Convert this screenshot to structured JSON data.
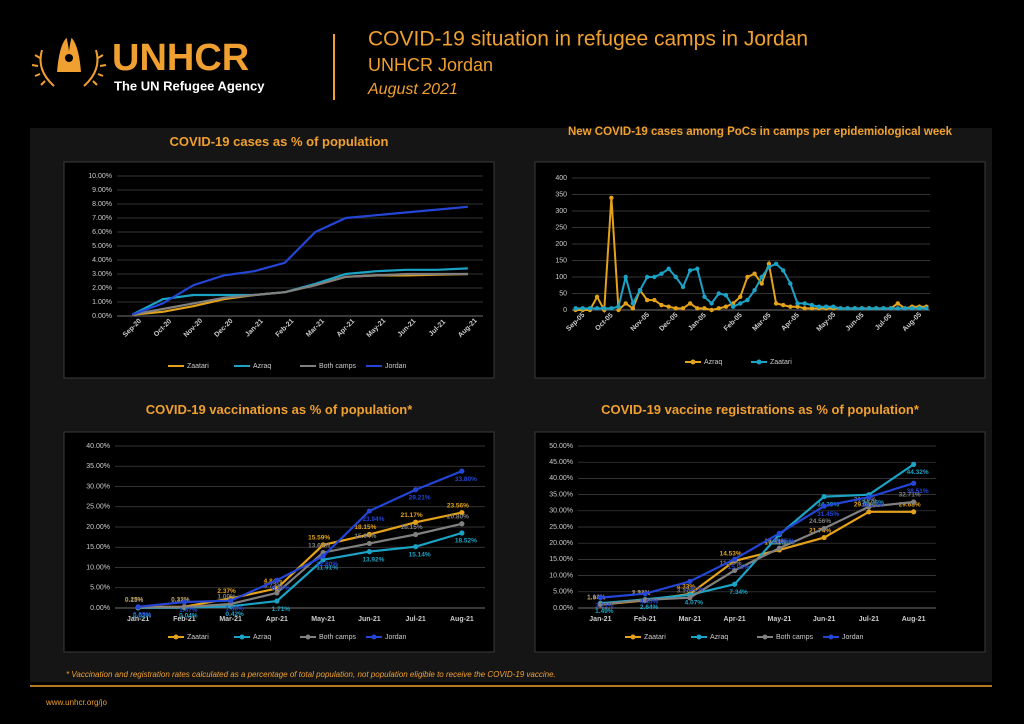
{
  "header": {
    "logo_text": "UNHCR",
    "tagline": "The UN Refugee Agency",
    "title": "COVID-19 situation in refugee camps in Jordan",
    "subtitle": "UNHCR Jordan",
    "date": "August 2021"
  },
  "footnote": "* Vaccination and registration rates calculated as a percentage of total population, not population eligible to receive the COVID-19 vaccine.",
  "url": "www.unhcr.org/jo",
  "chart_data": [
    {
      "type": "line",
      "title": "COVID-19 cases as % of population",
      "grid": true,
      "markers": false,
      "legend": "bottom",
      "categories": [
        "Sep-20",
        "Oct-20",
        "Nov-20",
        "Dec-20",
        "Jan-21",
        "Feb-21",
        "Mar-21",
        "Apr-21",
        "May-21",
        "Jun-21",
        "Jul-21",
        "Aug-21"
      ],
      "ylim": [
        0,
        10
      ],
      "yticks": [
        {
          "value": 0,
          "label": "0.00%"
        },
        {
          "value": 1,
          "label": "1.00%"
        },
        {
          "value": 2,
          "label": "2.00%"
        },
        {
          "value": 3,
          "label": "3.00%"
        },
        {
          "value": 4,
          "label": "4.00%"
        },
        {
          "value": 5,
          "label": "5.00%"
        },
        {
          "value": 6,
          "label": "6.00%"
        },
        {
          "value": 7,
          "label": "7.00%"
        },
        {
          "value": 8,
          "label": "8.00%"
        },
        {
          "value": 9,
          "label": "9.00%"
        },
        {
          "value": 10,
          "label": "10.00%"
        }
      ],
      "series": [
        {
          "name": "Zaatari",
          "color": "#e3a21a",
          "values": [
            0.1,
            0.3,
            0.7,
            1.2,
            1.5,
            1.7,
            2.2,
            2.8,
            2.9,
            2.9,
            2.95,
            3.0
          ]
        },
        {
          "name": "Azraq",
          "color": "#1ba3c6",
          "values": [
            0.1,
            1.2,
            1.5,
            1.5,
            1.5,
            1.7,
            2.3,
            3.0,
            3.2,
            3.3,
            3.3,
            3.4
          ]
        },
        {
          "name": "Both camps",
          "color": "#808080",
          "values": [
            0.1,
            0.5,
            0.9,
            1.3,
            1.5,
            1.7,
            2.2,
            2.8,
            2.9,
            3.0,
            3.0,
            3.0
          ]
        },
        {
          "name": "Jordan",
          "color": "#2446d6",
          "values": [
            0.1,
            0.9,
            2.2,
            2.9,
            3.2,
            3.8,
            6.0,
            7.0,
            7.2,
            7.4,
            7.6,
            7.8
          ]
        }
      ]
    },
    {
      "type": "line",
      "title": "New COVID-19 cases among PoCs in camps per epidemiological week",
      "grid": true,
      "markers": true,
      "legend": "bottom",
      "categories": [
        "Sep-05",
        null,
        null,
        null,
        "Oct-05",
        null,
        null,
        null,
        null,
        "Nov-05",
        null,
        null,
        null,
        "Dec-05",
        null,
        null,
        null,
        "Jan-05",
        null,
        null,
        null,
        null,
        "Feb-05",
        null,
        null,
        null,
        "Mar-05",
        null,
        null,
        null,
        "Apr-05",
        null,
        null,
        null,
        null,
        "May-05",
        null,
        null,
        null,
        "Jun-05",
        null,
        null,
        null,
        "Jul-05",
        null,
        null,
        null,
        "Aug-05",
        null,
        null
      ],
      "ylim": [
        0,
        400
      ],
      "yticks": [
        0,
        50,
        100,
        150,
        200,
        250,
        300,
        350,
        400
      ],
      "series": [
        {
          "name": "Azraq",
          "color": "#e3a21a",
          "values": [
            0,
            0,
            0,
            40,
            0,
            340,
            0,
            20,
            5,
            60,
            30,
            30,
            15,
            10,
            5,
            5,
            20,
            5,
            5,
            0,
            5,
            10,
            20,
            40,
            100,
            110,
            80,
            140,
            20,
            15,
            10,
            10,
            5,
            5,
            5,
            5,
            5,
            5,
            5,
            5,
            5,
            5,
            5,
            5,
            5,
            20,
            5,
            10,
            10,
            10
          ]
        },
        {
          "name": "Zaatari",
          "color": "#1ba3c6",
          "values": [
            5,
            5,
            5,
            5,
            5,
            5,
            10,
            100,
            20,
            60,
            100,
            100,
            110,
            125,
            100,
            70,
            120,
            125,
            40,
            20,
            50,
            45,
            10,
            20,
            30,
            60,
            100,
            130,
            140,
            120,
            80,
            20,
            20,
            15,
            10,
            10,
            10,
            5,
            5,
            5,
            5,
            5,
            5,
            5,
            5,
            5,
            5,
            5,
            5,
            5
          ]
        }
      ]
    },
    {
      "type": "line",
      "title": "COVID-19 vaccinations as % of population*",
      "grid": true,
      "markers": true,
      "legend": "bottom",
      "categories": [
        "Jan-21",
        "Feb-21",
        "Mar-21",
        "Apr-21",
        "May-21",
        "Jun-21",
        "Jul-21",
        "Aug-21"
      ],
      "ylim": [
        0,
        40
      ],
      "yticks": [
        {
          "value": 0,
          "label": "0.00%"
        },
        {
          "value": 5,
          "label": "5.00%"
        },
        {
          "value": 10,
          "label": "10.00%"
        },
        {
          "value": 15,
          "label": "15.00%"
        },
        {
          "value": 20,
          "label": "20.00%"
        },
        {
          "value": 25,
          "label": "25.00%"
        },
        {
          "value": 30,
          "label": "30.00%"
        },
        {
          "value": 35,
          "label": "35.00%"
        },
        {
          "value": 40,
          "label": "40.00%"
        }
      ],
      "series": [
        {
          "name": "Zaatari",
          "color": "#e3a21a",
          "values": [
            0.25,
            0.32,
            2.37,
            4.84,
            15.59,
            18.15,
            21.17,
            23.56
          ],
          "value_labels": [
            "0.25%",
            "0.32%",
            "2.37%",
            "4.84%",
            "15.59%",
            "18.15%",
            "21.17%",
            "23.56%"
          ]
        },
        {
          "name": "Azraq",
          "color": "#1ba3c6",
          "values": [
            0.02,
            0.04,
            0.42,
            1.71,
            11.91,
            13.92,
            15.14,
            18.52
          ],
          "value_labels": [
            "0.02%",
            "0.04%",
            "0.42%",
            "1.71%",
            "11.91%",
            "13.92%",
            "15.14%",
            "18.52%"
          ]
        },
        {
          "name": "Both camps",
          "color": "#808080",
          "values": [
            0.13,
            0.22,
            1.0,
            3.73,
            13.68,
            15.94,
            18.15,
            20.8
          ],
          "value_labels": [
            "0.13%",
            "0.22%",
            "1.00%",
            "3.73%",
            "13.68%",
            "15.94%",
            "18.15%",
            "20.80%"
          ]
        },
        {
          "name": "Jordan",
          "color": "#2446d6",
          "values": [
            0.29,
            1.47,
            1.8,
            6.87,
            12.8,
            23.94,
            29.21,
            33.8
          ],
          "value_labels": [
            "0.29%",
            "1.47%",
            "1.80%",
            "6.87%",
            "12.80%",
            "23.94%",
            "29.21%",
            "33.80%"
          ]
        }
      ]
    },
    {
      "type": "line",
      "title": "COVID-19 vaccine registrations as % of population*",
      "grid": true,
      "markers": true,
      "legend": "bottom",
      "categories": [
        "Jan-21",
        "Feb-21",
        "Mar-21",
        "Apr-21",
        "May-21",
        "Jun-21",
        "Jul-21",
        "Aug-21"
      ],
      "ylim": [
        0,
        50
      ],
      "yticks": [
        {
          "value": 0,
          "label": "0.00%"
        },
        {
          "value": 5,
          "label": "5.00%"
        },
        {
          "value": 10,
          "label": "10.00%"
        },
        {
          "value": 15,
          "label": "15.00%"
        },
        {
          "value": 20,
          "label": "20.00%"
        },
        {
          "value": 25,
          "label": "25.00%"
        },
        {
          "value": 30,
          "label": "30.00%"
        },
        {
          "value": 35,
          "label": "35.00%"
        },
        {
          "value": 40,
          "label": "40.00%"
        },
        {
          "value": 45,
          "label": "45.00%"
        },
        {
          "value": 50,
          "label": "50.00%"
        }
      ],
      "series": [
        {
          "name": "Zaatari",
          "color": "#e3a21a",
          "values": [
            1.04,
            2.34,
            4.33,
            14.53,
            17.94,
            21.74,
            29.68,
            29.68
          ],
          "value_labels": [
            "1.04%",
            "2.34%",
            "4.33%",
            "14.53%",
            "17.94%",
            "21.74%",
            "29.68%",
            "29.68%"
          ]
        },
        {
          "name": "Azraq",
          "color": "#1ba3c6",
          "values": [
            1.49,
            2.64,
            4.07,
            7.34,
            22.65,
            34.39,
            34.96,
            44.32
          ],
          "value_labels": [
            "1.49%",
            "2.64%",
            "4.07%",
            "7.34%",
            "22.65%",
            "34.39%",
            "34.96%",
            "44.32%"
          ]
        },
        {
          "name": "Both camps",
          "color": "#808080",
          "values": [
            1.13,
            2.51,
            3.17,
            11.59,
            18.49,
            24.56,
            31.26,
            32.71
          ],
          "value_labels": [
            "1.13%",
            "2.51%",
            "3.17%",
            "11.59%",
            "18.49%",
            "24.56%",
            "31.26%",
            "32.71%"
          ]
        },
        {
          "name": "Jordan",
          "color": "#2446d6",
          "values": [
            3.21,
            4.4,
            8.21,
            15.06,
            23.05,
            31.45,
            34.2,
            38.51
          ],
          "value_labels": [
            "3.21%",
            "4.40%",
            "8.21%",
            "15.06%",
            "23.05%",
            "31.45%",
            "34.20%",
            "38.51%"
          ]
        }
      ]
    }
  ]
}
